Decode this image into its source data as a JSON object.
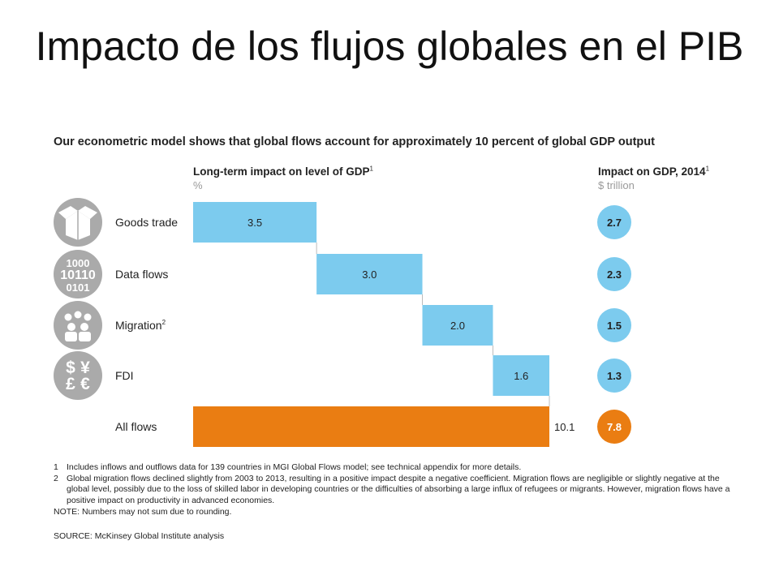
{
  "title": "Impacto de los flujos globales en el PIB",
  "subtitle": "Our econometric model shows that global flows account for approximately 10 percent of global GDP output",
  "left_header": {
    "title": "Long-term impact on level of GDP",
    "sup": "1",
    "unit": "%"
  },
  "right_header": {
    "title": "Impact on GDP, 2014",
    "sup": "1",
    "unit": "$ trillion"
  },
  "chart_data": {
    "type": "bar",
    "subtype": "waterfall",
    "categories": [
      "Goods trade",
      "Data flows",
      "Migration",
      "FDI",
      "All flows"
    ],
    "category_sups": [
      "",
      "",
      "2",
      "",
      ""
    ],
    "icons": [
      "box-icon",
      "binary-digits-icon",
      "people-icon",
      "currency-icon",
      ""
    ],
    "series": [
      {
        "name": "Long-term impact on level of GDP",
        "values": [
          3.5,
          3.0,
          2.0,
          1.6,
          10.1
        ],
        "labels": [
          "3.5",
          "3.0",
          "2.0",
          "1.6",
          "10.1"
        ]
      },
      {
        "name": "Impact on GDP, 2014",
        "values": [
          2.7,
          2.3,
          1.5,
          1.3,
          7.8
        ],
        "labels": [
          "2.7",
          "2.3",
          "1.5",
          "1.3",
          "7.8"
        ]
      }
    ],
    "total_index": 4,
    "xlim": [
      0,
      10.1
    ],
    "colors": {
      "component": "#7ccbee",
      "total": "#ea7d12",
      "icon_bg": "#aaaaaa",
      "circle": "#7ccbee",
      "circle_total": "#ea7d12"
    }
  },
  "notes": [
    {
      "num": "1",
      "text": "Includes inflows and outflows data for 139 countries in MGI Global Flows model; see technical appendix for more details."
    },
    {
      "num": "2",
      "text": "Global migration flows declined slightly from 2003 to 2013, resulting in a positive impact despite a negative coefficient. Migration flows are negligible or slightly negative at the global level, possibly due to the loss of skilled labor in developing countries or the difficulties of absorbing a large influx of refugees or migrants. However, migration flows have a positive impact on productivity in advanced economies."
    }
  ],
  "note_rounding": "NOTE: Numbers may not sum due to rounding.",
  "source": "SOURCE: McKinsey Global Institute analysis"
}
